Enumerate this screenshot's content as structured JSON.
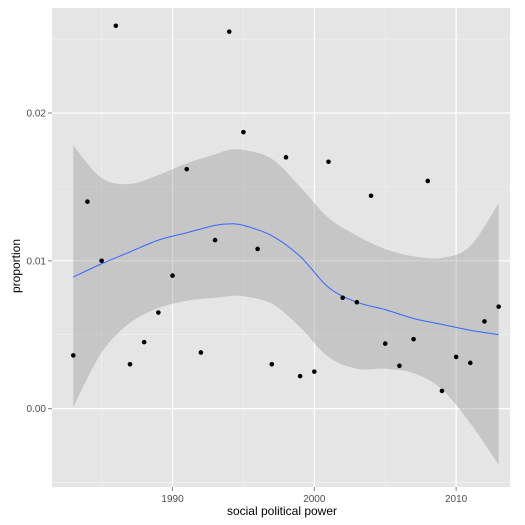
{
  "chart_data": {
    "type": "scatter",
    "xlabel": "social political power",
    "ylabel": "proportion",
    "xlim": [
      1981.5,
      2013.8
    ],
    "ylim": [
      -0.0053,
      0.0271
    ],
    "x_ticks": [
      1990,
      2000,
      2010
    ],
    "y_ticks": [
      0.0,
      0.01,
      0.02
    ],
    "x_tick_labels": [
      "1990",
      "2000",
      "2010"
    ],
    "y_tick_labels": [
      "0.00",
      "0.01",
      "0.02"
    ],
    "grid": true,
    "legend": "none",
    "colors": {
      "panel": "#e5e5e5",
      "grid_major": "#ffffff",
      "grid_minor": "#f2f2f2",
      "points": "#000000",
      "smooth_line": "#3366ff",
      "ribbon": "#999999"
    },
    "points": [
      {
        "x": 1983,
        "y": 0.0036
      },
      {
        "x": 1984,
        "y": 0.014
      },
      {
        "x": 1985,
        "y": 0.01
      },
      {
        "x": 1986,
        "y": 0.0259
      },
      {
        "x": 1987,
        "y": 0.003
      },
      {
        "x": 1988,
        "y": 0.0045
      },
      {
        "x": 1989,
        "y": 0.0065
      },
      {
        "x": 1990,
        "y": 0.009
      },
      {
        "x": 1991,
        "y": 0.0162
      },
      {
        "x": 1992,
        "y": 0.0038
      },
      {
        "x": 1993,
        "y": 0.0114
      },
      {
        "x": 1994,
        "y": 0.0255
      },
      {
        "x": 1995,
        "y": 0.0187
      },
      {
        "x": 1996,
        "y": 0.0108
      },
      {
        "x": 1997,
        "y": 0.003
      },
      {
        "x": 1998,
        "y": 0.017
      },
      {
        "x": 1999,
        "y": 0.0022
      },
      {
        "x": 2000,
        "y": 0.0025
      },
      {
        "x": 2001,
        "y": 0.0167
      },
      {
        "x": 2002,
        "y": 0.0075
      },
      {
        "x": 2003,
        "y": 0.0072
      },
      {
        "x": 2004,
        "y": 0.0144
      },
      {
        "x": 2005,
        "y": 0.0044
      },
      {
        "x": 2006,
        "y": 0.0029
      },
      {
        "x": 2007,
        "y": 0.0047
      },
      {
        "x": 2008,
        "y": 0.0154
      },
      {
        "x": 2009,
        "y": 0.0012
      },
      {
        "x": 2010,
        "y": 0.0035
      },
      {
        "x": 2011,
        "y": 0.0031
      },
      {
        "x": 2012,
        "y": 0.0059
      },
      {
        "x": 2013,
        "y": 0.0069
      }
    ],
    "smooth": [
      {
        "x": 1983,
        "y": 0.0089,
        "lower": 0.0001,
        "upper": 0.0178
      },
      {
        "x": 1985,
        "y": 0.0098,
        "lower": 0.0038,
        "upper": 0.0156
      },
      {
        "x": 1987,
        "y": 0.0106,
        "lower": 0.0058,
        "upper": 0.0152
      },
      {
        "x": 1989,
        "y": 0.0114,
        "lower": 0.0068,
        "upper": 0.0158
      },
      {
        "x": 1991,
        "y": 0.0119,
        "lower": 0.0073,
        "upper": 0.0166
      },
      {
        "x": 1993,
        "y": 0.0124,
        "lower": 0.0075,
        "upper": 0.0172
      },
      {
        "x": 1994,
        "y": 0.0125,
        "lower": 0.0076,
        "upper": 0.0175
      },
      {
        "x": 1995,
        "y": 0.0124,
        "lower": 0.0076,
        "upper": 0.0175
      },
      {
        "x": 1997,
        "y": 0.0117,
        "lower": 0.0071,
        "upper": 0.0169
      },
      {
        "x": 1999,
        "y": 0.0103,
        "lower": 0.0055,
        "upper": 0.015
      },
      {
        "x": 2001,
        "y": 0.0082,
        "lower": 0.0035,
        "upper": 0.0129
      },
      {
        "x": 2003,
        "y": 0.0072,
        "lower": 0.0027,
        "upper": 0.0117
      },
      {
        "x": 2005,
        "y": 0.0067,
        "lower": 0.0027,
        "upper": 0.0108
      },
      {
        "x": 2007,
        "y": 0.0061,
        "lower": 0.0024,
        "upper": 0.0103
      },
      {
        "x": 2009,
        "y": 0.0057,
        "lower": 0.0013,
        "upper": 0.0102
      },
      {
        "x": 2011,
        "y": 0.0053,
        "lower": -0.001,
        "upper": 0.011
      },
      {
        "x": 2013,
        "y": 0.005,
        "lower": -0.0038,
        "upper": 0.0139
      }
    ]
  }
}
